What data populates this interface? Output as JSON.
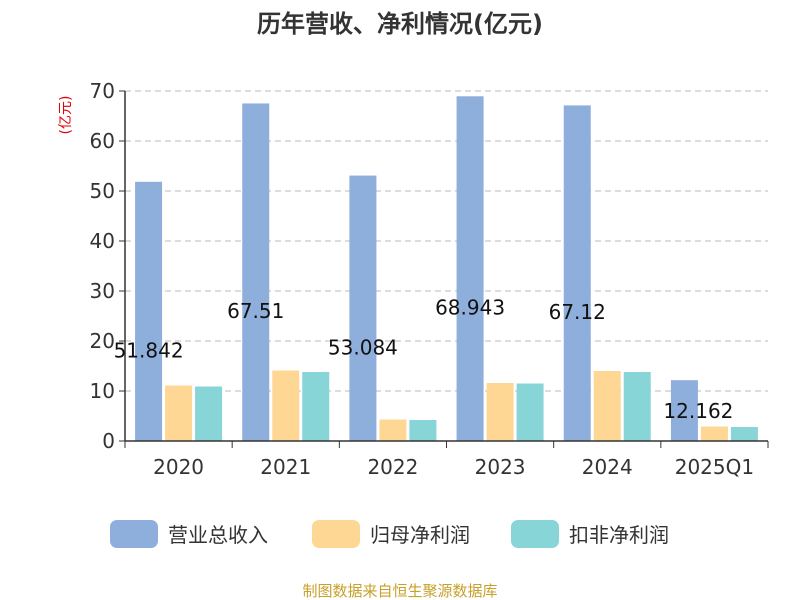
{
  "chart_data": {
    "type": "bar",
    "title": "历年营收、净利情况(亿元)",
    "ylabel": "(亿元)",
    "ylim": [
      0,
      70
    ],
    "yticks": [
      0,
      10,
      20,
      30,
      40,
      50,
      60,
      70
    ],
    "grid": true,
    "categories": [
      "2020",
      "2021",
      "2022",
      "2023",
      "2024",
      "2025Q1"
    ],
    "series": [
      {
        "name": "营业总收入",
        "color": "#8eaedb",
        "values": [
          51.842,
          67.51,
          53.084,
          68.943,
          67.12,
          12.162
        ]
      },
      {
        "name": "归母净利润",
        "color": "#fdd793",
        "values": [
          11.1,
          14.1,
          4.3,
          11.6,
          14.0,
          2.9
        ]
      },
      {
        "name": "扣非净利润",
        "color": "#88d5d8",
        "values": [
          10.9,
          13.8,
          4.2,
          11.5,
          13.8,
          2.8
        ]
      }
    ],
    "data_labels": [
      "51.842",
      "67.51",
      "53.084",
      "68.943",
      "67.12",
      "12.162"
    ],
    "legend_position": "bottom",
    "source": "制图数据来自恒生聚源数据库"
  }
}
